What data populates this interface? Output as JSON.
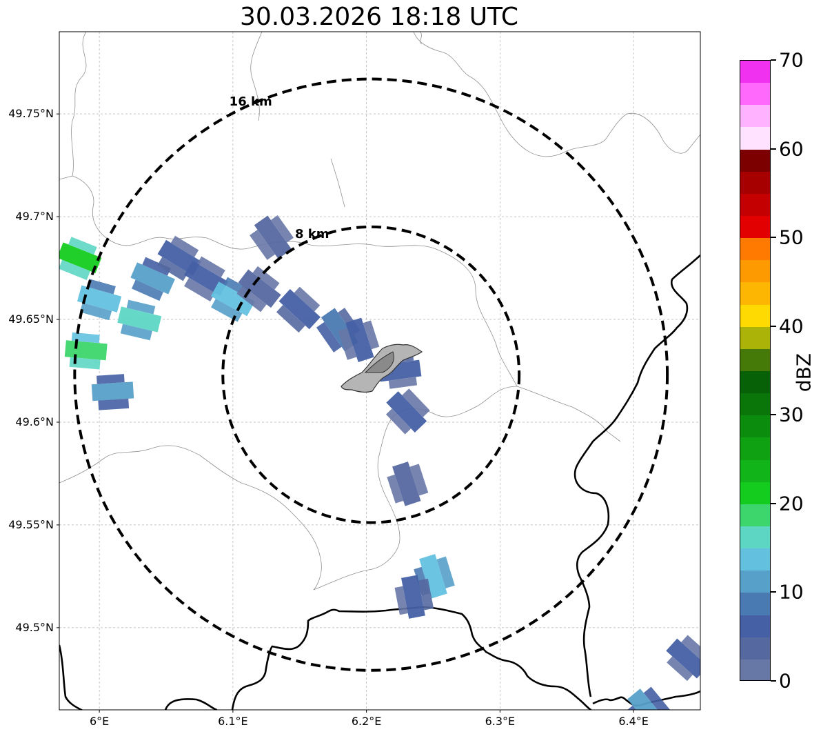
{
  "title": "30.03.2026 18:18 UTC",
  "map": {
    "lon_range": [
      5.97,
      6.45
    ],
    "lat_range": [
      49.46,
      49.79
    ],
    "center": {
      "lon": 6.2034,
      "lat": 49.6231
    },
    "gridlines": true,
    "y_ticks": [
      {
        "value": 49.5,
        "label": "49.5°N"
      },
      {
        "value": 49.55,
        "label": "49.55°N"
      },
      {
        "value": 49.6,
        "label": "49.6°N"
      },
      {
        "value": 49.65,
        "label": "49.65°N"
      },
      {
        "value": 49.7,
        "label": "49.7°N"
      },
      {
        "value": 49.75,
        "label": "49.75°N"
      }
    ],
    "x_ticks": [
      {
        "value": 6.0,
        "label": "6°E"
      },
      {
        "value": 6.1,
        "label": "6.1°E"
      },
      {
        "value": 6.2,
        "label": "6.2°E"
      },
      {
        "value": 6.3,
        "label": "6.3°E"
      },
      {
        "value": 6.4,
        "label": "6.4°E"
      }
    ],
    "range_rings": [
      {
        "radius_km": 8,
        "label": "8 km"
      },
      {
        "radius_km": 16,
        "label": "16 km"
      }
    ]
  },
  "colorbar": {
    "unit": "dBZ",
    "min": 0,
    "max": 70,
    "tick_labels": [
      "0",
      "10",
      "20",
      "30",
      "40",
      "50",
      "60",
      "70"
    ],
    "colors": [
      "#6777a6",
      "#5568a0",
      "#4560a4",
      "#4a7ab2",
      "#57a0c9",
      "#63c1df",
      "#5ed6c4",
      "#3dd66c",
      "#14cc1e",
      "#12b519",
      "#0fa112",
      "#0c8c0d",
      "#0a760a",
      "#076107",
      "#467a08",
      "#abb308",
      "#fed902",
      "#fdb601",
      "#fe9a01",
      "#fe7a01",
      "#e30000",
      "#c40000",
      "#a70000",
      "#7d0000",
      "#ffe2ff",
      "#ffb2ff",
      "#ff6afd",
      "#f032f0"
    ]
  },
  "radar_echoes": [
    {
      "lon": 6.0,
      "lat": 49.66,
      "dbz": 14
    },
    {
      "lon": 5.985,
      "lat": 49.68,
      "dbz": 20
    },
    {
      "lon": 5.99,
      "lat": 49.635,
      "dbz": 18
    },
    {
      "lon": 6.01,
      "lat": 49.615,
      "dbz": 10
    },
    {
      "lon": 6.03,
      "lat": 49.65,
      "dbz": 15
    },
    {
      "lon": 6.04,
      "lat": 49.67,
      "dbz": 12
    },
    {
      "lon": 6.06,
      "lat": 49.68,
      "dbz": 6
    },
    {
      "lon": 6.08,
      "lat": 49.67,
      "dbz": 5
    },
    {
      "lon": 6.1,
      "lat": 49.66,
      "dbz": 13
    },
    {
      "lon": 6.12,
      "lat": 49.665,
      "dbz": 4
    },
    {
      "lon": 6.13,
      "lat": 49.69,
      "dbz": 3
    },
    {
      "lon": 6.15,
      "lat": 49.655,
      "dbz": 6
    },
    {
      "lon": 6.18,
      "lat": 49.645,
      "dbz": 8
    },
    {
      "lon": 6.195,
      "lat": 49.64,
      "dbz": 5
    },
    {
      "lon": 6.225,
      "lat": 49.625,
      "dbz": 6
    },
    {
      "lon": 6.23,
      "lat": 49.605,
      "dbz": 5
    },
    {
      "lon": 6.23,
      "lat": 49.57,
      "dbz": 4
    },
    {
      "lon": 6.25,
      "lat": 49.525,
      "dbz": 14
    },
    {
      "lon": 6.235,
      "lat": 49.515,
      "dbz": 6
    },
    {
      "lon": 6.41,
      "lat": 49.46,
      "dbz": 10
    },
    {
      "lon": 6.44,
      "lat": 49.485,
      "dbz": 5
    }
  ]
}
